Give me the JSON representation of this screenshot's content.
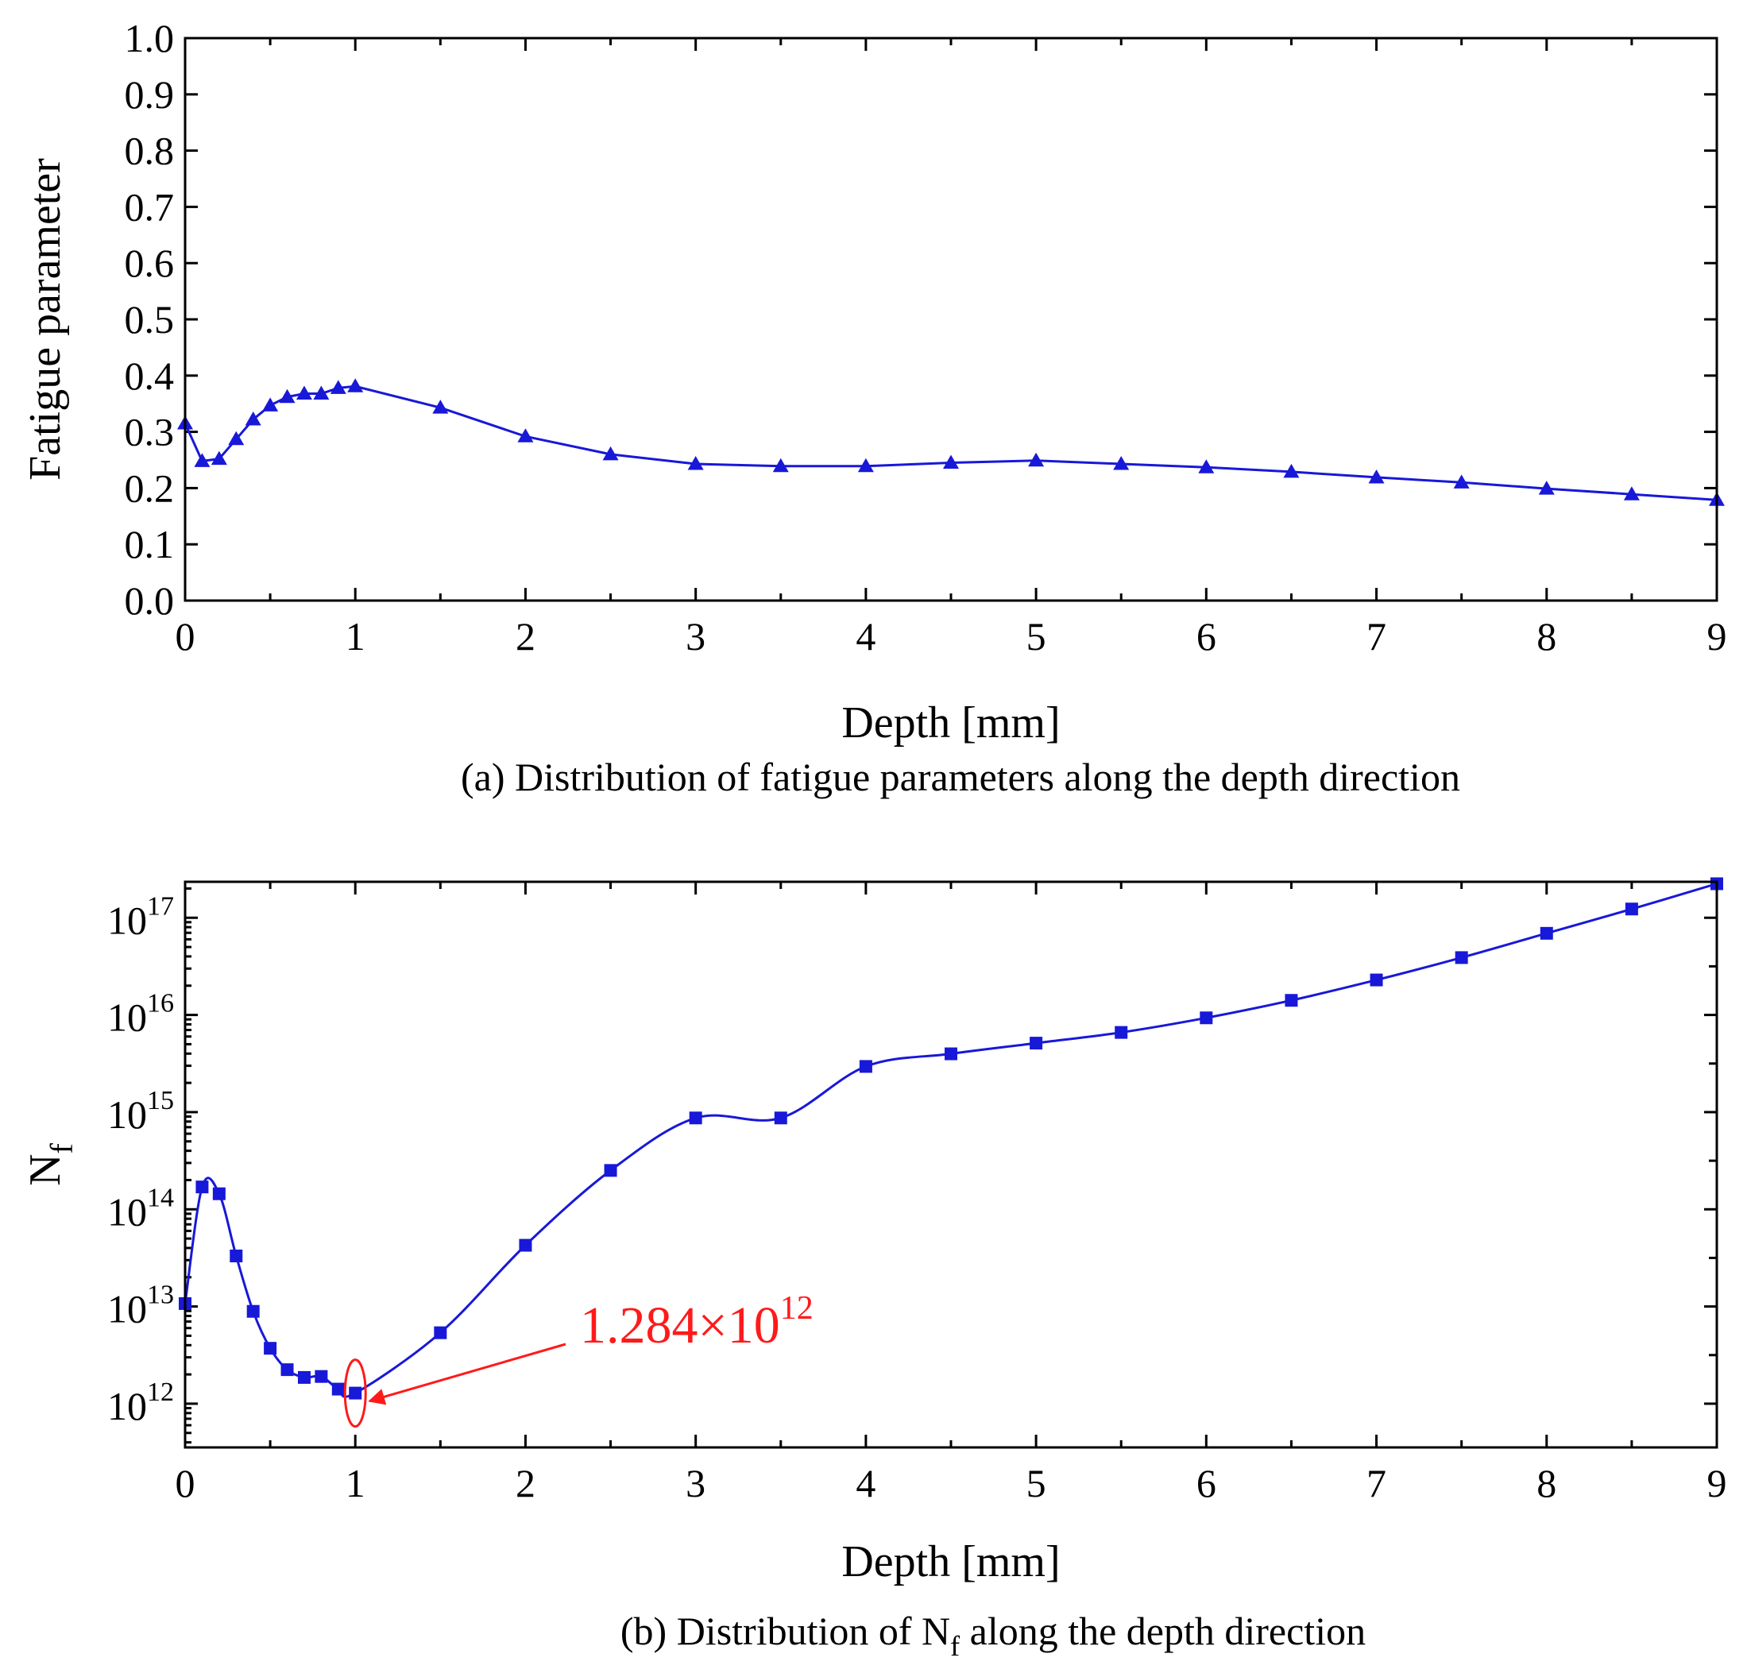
{
  "colors": {
    "series": "#1818d8",
    "annotation": "#ff1a1a",
    "axis": "#000000"
  },
  "chart_data": [
    {
      "type": "line",
      "marker": "triangle",
      "title": "",
      "caption": "(a) Distribution of fatigue parameters along the depth direction",
      "xlabel": "Depth [mm]",
      "ylabel": "Fatigue parameter",
      "xlim": [
        0,
        9
      ],
      "ylim": [
        0,
        1.0
      ],
      "xticks": [
        0,
        1,
        2,
        3,
        4,
        5,
        6,
        7,
        8,
        9
      ],
      "xtick_labels": [
        "0",
        "1",
        "2",
        "3",
        "4",
        "5",
        "6",
        "7",
        "8",
        "9"
      ],
      "yticks": [
        0.0,
        0.1,
        0.2,
        0.3,
        0.4,
        0.5,
        0.6,
        0.7,
        0.8,
        0.9,
        1.0
      ],
      "ytick_labels": [
        "0.0",
        "0.1",
        "0.2",
        "0.3",
        "0.4",
        "0.5",
        "0.6",
        "0.7",
        "0.8",
        "0.9",
        "1.0"
      ],
      "x": [
        0,
        0.1,
        0.2,
        0.3,
        0.4,
        0.5,
        0.6,
        0.7,
        0.8,
        0.9,
        1.0,
        1.5,
        2.0,
        2.5,
        3.0,
        3.5,
        4.0,
        4.5,
        5.0,
        5.5,
        6.0,
        6.5,
        7.0,
        7.5,
        8.0,
        8.5,
        9.0
      ],
      "y": [
        0.315,
        0.248,
        0.252,
        0.287,
        0.322,
        0.347,
        0.362,
        0.368,
        0.368,
        0.378,
        0.381,
        0.343,
        0.292,
        0.26,
        0.243,
        0.239,
        0.239,
        0.245,
        0.249,
        0.243,
        0.237,
        0.229,
        0.219,
        0.21,
        0.199,
        0.189,
        0.179
      ]
    },
    {
      "type": "line",
      "marker": "square",
      "title": "",
      "caption": {
        "prefix": "(b) Distribution of N",
        "sub": "f",
        "suffix": " along the depth direction"
      },
      "xlabel": "Depth [mm]",
      "ylabel": {
        "base": "N",
        "sub": "f"
      },
      "yscale": "log",
      "xlim": [
        0,
        9
      ],
      "ylim_exponent": [
        11.55,
        17.37
      ],
      "xticks": [
        0,
        1,
        2,
        3,
        4,
        5,
        6,
        7,
        8,
        9
      ],
      "xtick_labels": [
        "0",
        "1",
        "2",
        "3",
        "4",
        "5",
        "6",
        "7",
        "8",
        "9"
      ],
      "yticks_exponent": [
        12,
        13,
        14,
        15,
        16,
        17
      ],
      "ytick_labels": [
        {
          "base": "10",
          "exp": "12"
        },
        {
          "base": "10",
          "exp": "13"
        },
        {
          "base": "10",
          "exp": "14"
        },
        {
          "base": "10",
          "exp": "15"
        },
        {
          "base": "10",
          "exp": "16"
        },
        {
          "base": "10",
          "exp": "17"
        }
      ],
      "x": [
        0,
        0.1,
        0.2,
        0.3,
        0.4,
        0.5,
        0.6,
        0.7,
        0.8,
        0.9,
        1.0,
        1.5,
        2.0,
        2.5,
        3.0,
        3.5,
        4.0,
        4.5,
        5.0,
        5.5,
        6.0,
        6.5,
        7.0,
        7.5,
        8.0,
        8.5,
        9.0
      ],
      "y_exponent": [
        13.03,
        14.23,
        14.16,
        13.52,
        12.95,
        12.57,
        12.35,
        12.27,
        12.28,
        12.15,
        12.109,
        12.73,
        13.63,
        14.4,
        14.94,
        14.94,
        15.47,
        15.6,
        15.71,
        15.82,
        15.97,
        16.15,
        16.36,
        16.59,
        16.84,
        17.09,
        17.35
      ],
      "annotation": {
        "x": 1.0,
        "y_exponent": 12.109,
        "mantissa": "1.284×10",
        "exponent": "12"
      }
    }
  ]
}
